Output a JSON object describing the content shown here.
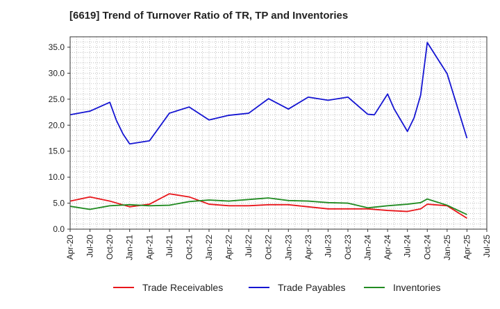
{
  "chart_data": {
    "type": "line",
    "title": "[6619]  Trend of Turnover Ratio of TR, TP and Inventories",
    "xlabel": "",
    "ylabel": "",
    "x": [
      "Apr-20",
      "May-20",
      "Jun-20",
      "Jul-20",
      "Aug-20",
      "Sep-20",
      "Oct-20",
      "Nov-20",
      "Dec-20",
      "Jan-21",
      "Feb-21",
      "Mar-21",
      "Apr-21",
      "May-21",
      "Jun-21",
      "Jul-21",
      "Aug-21",
      "Sep-21",
      "Oct-21",
      "Nov-21",
      "Dec-21",
      "Jan-22",
      "Feb-22",
      "Mar-22",
      "Apr-22",
      "May-22",
      "Jun-22",
      "Jul-22",
      "Aug-22",
      "Sep-22",
      "Oct-22",
      "Nov-22",
      "Dec-22",
      "Jan-23",
      "Feb-23",
      "Mar-23",
      "Apr-23",
      "May-23",
      "Jun-23",
      "Jul-23",
      "Aug-23",
      "Sep-23",
      "Oct-23",
      "Nov-23",
      "Dec-23",
      "Jan-24",
      "Feb-24",
      "Mar-24",
      "Apr-24",
      "May-24",
      "Jun-24",
      "Jul-24",
      "Aug-24",
      "Sep-24",
      "Oct-24",
      "Nov-24",
      "Dec-24",
      "Jan-25",
      "Feb-25",
      "Mar-25",
      "Apr-25"
    ],
    "x_tick_labels": [
      "Apr-20",
      "Jul-20",
      "Oct-20",
      "Jan-21",
      "Apr-21",
      "Jul-21",
      "Oct-21",
      "Jan-22",
      "Apr-22",
      "Jul-22",
      "Oct-22",
      "Jan-23",
      "Apr-23",
      "Jul-23",
      "Oct-23",
      "Jan-24",
      "Apr-24",
      "Jul-24",
      "Oct-24",
      "Jan-25",
      "Apr-25",
      "Jul-25"
    ],
    "y_tick_labels": [
      "0.0",
      "5.0",
      "10.0",
      "15.0",
      "20.0",
      "25.0",
      "30.0",
      "35.0"
    ],
    "ylim": [
      0,
      37
    ],
    "grid": true,
    "legend_position": "bottom",
    "series": [
      {
        "name": "Trade Receivables",
        "color": "#e8161b",
        "values": [
          5.4,
          null,
          null,
          6.2,
          null,
          null,
          5.4,
          null,
          null,
          4.3,
          null,
          null,
          4.8,
          null,
          null,
          6.8,
          null,
          null,
          6.2,
          null,
          null,
          4.8,
          null,
          null,
          4.5,
          null,
          null,
          4.5,
          null,
          null,
          4.7,
          null,
          null,
          4.7,
          null,
          null,
          4.3,
          null,
          null,
          3.9,
          null,
          null,
          3.9,
          null,
          null,
          3.9,
          null,
          null,
          3.6,
          null,
          null,
          3.4,
          null,
          3.9,
          4.8,
          null,
          null,
          4.5,
          null,
          null,
          2.1
        ]
      },
      {
        "name": "Trade Payables",
        "color": "#1414d2",
        "values": [
          22.0,
          null,
          null,
          22.7,
          null,
          null,
          24.4,
          20.9,
          18.3,
          16.4,
          null,
          null,
          17.0,
          null,
          null,
          22.3,
          null,
          null,
          23.5,
          null,
          null,
          21.0,
          null,
          null,
          21.9,
          null,
          null,
          22.3,
          null,
          null,
          25.1,
          null,
          null,
          23.1,
          null,
          null,
          25.4,
          null,
          null,
          24.8,
          null,
          null,
          25.4,
          null,
          null,
          22.1,
          22.0,
          null,
          26.0,
          23.1,
          null,
          18.8,
          21.4,
          25.8,
          35.9,
          null,
          null,
          29.9,
          null,
          null,
          17.5
        ]
      },
      {
        "name": "Inventories",
        "color": "#228b22",
        "values": [
          4.4,
          null,
          null,
          3.8,
          null,
          null,
          4.5,
          null,
          null,
          4.7,
          null,
          null,
          4.5,
          null,
          null,
          4.6,
          null,
          null,
          5.3,
          null,
          null,
          5.6,
          null,
          null,
          5.4,
          null,
          null,
          5.7,
          null,
          null,
          6.0,
          null,
          null,
          5.5,
          null,
          null,
          5.4,
          null,
          null,
          5.1,
          null,
          null,
          5.0,
          null,
          null,
          4.1,
          null,
          null,
          4.5,
          null,
          null,
          4.8,
          null,
          5.1,
          5.8,
          null,
          null,
          4.6,
          null,
          null,
          2.8
        ]
      }
    ]
  }
}
